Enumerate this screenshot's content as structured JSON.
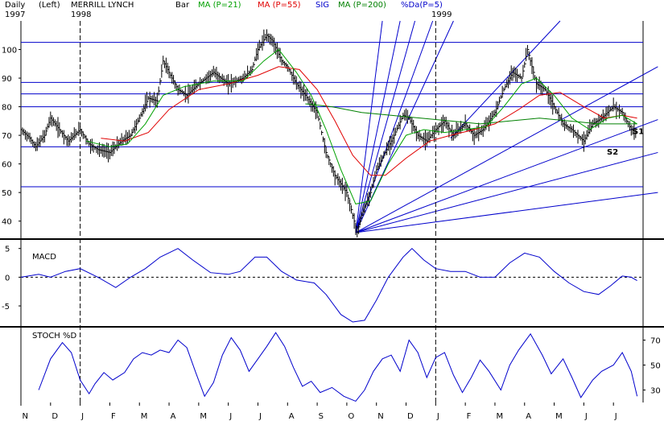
{
  "header": {
    "period": "Daily",
    "scale": "(Left)",
    "symbol": "MERRILL LYNCH",
    "chart_style": "Bar",
    "ma21": "MA (P=21)",
    "ma55": "MA (P=55)",
    "sig": "SIG",
    "ma200": "MA (P=200)",
    "pctd": "%Da(P=5)",
    "year1997": "1997",
    "year1998": "1998",
    "year1999": "1999"
  },
  "colors": {
    "price_bars": "#000000",
    "ma21": "#00a000",
    "ma55": "#e00000",
    "ma200": "#008000",
    "lines": "#0000cc",
    "sig": "#0000cc",
    "pctd": "#0000cc",
    "frame": "#000000"
  },
  "chart_data": [
    {
      "type": "line",
      "title": "",
      "ylim": [
        34,
        110
      ],
      "y_ticks": [
        40,
        50,
        60,
        70,
        80,
        90,
        100
      ],
      "x_ticks": [
        "N",
        "D",
        "J",
        "F",
        "M",
        "A",
        "M",
        "J",
        "J",
        "A",
        "S",
        "O",
        "N",
        "D",
        "J",
        "F",
        "M",
        "A",
        "M",
        "J",
        "J"
      ],
      "horizontal_levels": [
        102.5,
        88.5,
        84.5,
        80,
        66,
        52
      ],
      "annotations": [
        "S1",
        "S2"
      ],
      "price_path": [
        {
          "m": 0.0,
          "v": 72
        },
        {
          "m": 0.3,
          "v": 69
        },
        {
          "m": 0.5,
          "v": 66
        },
        {
          "m": 0.8,
          "v": 70
        },
        {
          "m": 1.0,
          "v": 76
        },
        {
          "m": 1.3,
          "v": 72
        },
        {
          "m": 1.6,
          "v": 68
        },
        {
          "m": 2.0,
          "v": 72
        },
        {
          "m": 2.3,
          "v": 67
        },
        {
          "m": 2.6,
          "v": 65
        },
        {
          "m": 3.0,
          "v": 64
        },
        {
          "m": 3.4,
          "v": 68
        },
        {
          "m": 3.7,
          "v": 70
        },
        {
          "m": 4.0,
          "v": 76
        },
        {
          "m": 4.3,
          "v": 83
        },
        {
          "m": 4.6,
          "v": 82
        },
        {
          "m": 4.8,
          "v": 96
        },
        {
          "m": 5.0,
          "v": 92
        },
        {
          "m": 5.3,
          "v": 86
        },
        {
          "m": 5.6,
          "v": 84
        },
        {
          "m": 6.0,
          "v": 88
        },
        {
          "m": 6.5,
          "v": 92
        },
        {
          "m": 7.0,
          "v": 88
        },
        {
          "m": 7.5,
          "v": 90
        },
        {
          "m": 7.8,
          "v": 93
        },
        {
          "m": 8.0,
          "v": 100
        },
        {
          "m": 8.3,
          "v": 105
        },
        {
          "m": 8.5,
          "v": 103
        },
        {
          "m": 8.8,
          "v": 96
        },
        {
          "m": 9.0,
          "v": 94
        },
        {
          "m": 9.3,
          "v": 88
        },
        {
          "m": 9.6,
          "v": 84
        },
        {
          "m": 10.0,
          "v": 78
        },
        {
          "m": 10.3,
          "v": 64
        },
        {
          "m": 10.6,
          "v": 56
        },
        {
          "m": 11.0,
          "v": 50
        },
        {
          "m": 11.2,
          "v": 42
        },
        {
          "m": 11.35,
          "v": 36
        },
        {
          "m": 11.5,
          "v": 42
        },
        {
          "m": 11.8,
          "v": 50
        },
        {
          "m": 12.0,
          "v": 58
        },
        {
          "m": 12.3,
          "v": 64
        },
        {
          "m": 12.6,
          "v": 70
        },
        {
          "m": 12.9,
          "v": 77
        },
        {
          "m": 13.1,
          "v": 76
        },
        {
          "m": 13.4,
          "v": 70
        },
        {
          "m": 13.7,
          "v": 68
        },
        {
          "m": 14.0,
          "v": 72
        },
        {
          "m": 14.3,
          "v": 75
        },
        {
          "m": 14.6,
          "v": 70
        },
        {
          "m": 15.0,
          "v": 74
        },
        {
          "m": 15.3,
          "v": 70
        },
        {
          "m": 15.6,
          "v": 72
        },
        {
          "m": 16.0,
          "v": 78
        },
        {
          "m": 16.3,
          "v": 86
        },
        {
          "m": 16.6,
          "v": 92
        },
        {
          "m": 16.9,
          "v": 90
        },
        {
          "m": 17.1,
          "v": 100
        },
        {
          "m": 17.4,
          "v": 88
        },
        {
          "m": 17.7,
          "v": 86
        },
        {
          "m": 18.0,
          "v": 80
        },
        {
          "m": 18.3,
          "v": 74
        },
        {
          "m": 18.6,
          "v": 72
        },
        {
          "m": 19.0,
          "v": 68
        },
        {
          "m": 19.3,
          "v": 74
        },
        {
          "m": 19.6,
          "v": 76
        },
        {
          "m": 20.0,
          "v": 80
        },
        {
          "m": 20.3,
          "v": 78
        },
        {
          "m": 20.6,
          "v": 72
        },
        {
          "m": 20.8,
          "v": 71
        }
      ],
      "ma_paths": {
        "ma21": [
          {
            "m": 2.2,
            "v": 68
          },
          {
            "m": 3.0,
            "v": 66
          },
          {
            "m": 3.6,
            "v": 67
          },
          {
            "m": 4.2,
            "v": 74
          },
          {
            "m": 4.8,
            "v": 84
          },
          {
            "m": 5.5,
            "v": 87
          },
          {
            "m": 6.5,
            "v": 89
          },
          {
            "m": 7.5,
            "v": 89
          },
          {
            "m": 8.2,
            "v": 96
          },
          {
            "m": 8.7,
            "v": 100
          },
          {
            "m": 9.3,
            "v": 92
          },
          {
            "m": 9.8,
            "v": 84
          },
          {
            "m": 10.3,
            "v": 72
          },
          {
            "m": 10.8,
            "v": 58
          },
          {
            "m": 11.3,
            "v": 46
          },
          {
            "m": 11.8,
            "v": 47
          },
          {
            "m": 12.4,
            "v": 60
          },
          {
            "m": 13.0,
            "v": 70
          },
          {
            "m": 13.6,
            "v": 72
          },
          {
            "m": 14.3,
            "v": 71
          },
          {
            "m": 15.0,
            "v": 72
          },
          {
            "m": 15.7,
            "v": 73
          },
          {
            "m": 16.3,
            "v": 80
          },
          {
            "m": 16.9,
            "v": 88
          },
          {
            "m": 17.4,
            "v": 90
          },
          {
            "m": 18.0,
            "v": 84
          },
          {
            "m": 18.6,
            "v": 76
          },
          {
            "m": 19.2,
            "v": 72
          },
          {
            "m": 19.8,
            "v": 76
          },
          {
            "m": 20.3,
            "v": 77
          },
          {
            "m": 20.8,
            "v": 74
          }
        ],
        "ma55": [
          {
            "m": 2.7,
            "v": 69
          },
          {
            "m": 3.5,
            "v": 68
          },
          {
            "m": 4.3,
            "v": 71
          },
          {
            "m": 5.0,
            "v": 79
          },
          {
            "m": 6.0,
            "v": 86
          },
          {
            "m": 7.0,
            "v": 88
          },
          {
            "m": 8.0,
            "v": 91
          },
          {
            "m": 8.7,
            "v": 94
          },
          {
            "m": 9.4,
            "v": 93
          },
          {
            "m": 10.0,
            "v": 86
          },
          {
            "m": 10.6,
            "v": 75
          },
          {
            "m": 11.2,
            "v": 63
          },
          {
            "m": 11.8,
            "v": 56
          },
          {
            "m": 12.3,
            "v": 56
          },
          {
            "m": 13.0,
            "v": 62
          },
          {
            "m": 13.8,
            "v": 68
          },
          {
            "m": 14.5,
            "v": 70
          },
          {
            "m": 15.3,
            "v": 72
          },
          {
            "m": 16.0,
            "v": 74
          },
          {
            "m": 16.8,
            "v": 79
          },
          {
            "m": 17.5,
            "v": 84
          },
          {
            "m": 18.2,
            "v": 85
          },
          {
            "m": 19.0,
            "v": 80
          },
          {
            "m": 19.7,
            "v": 76
          },
          {
            "m": 20.3,
            "v": 77
          },
          {
            "m": 20.8,
            "v": 76
          }
        ],
        "ma200": [
          {
            "m": 9.6,
            "v": 81
          },
          {
            "m": 10.5,
            "v": 80
          },
          {
            "m": 11.5,
            "v": 78
          },
          {
            "m": 12.5,
            "v": 77
          },
          {
            "m": 13.5,
            "v": 76
          },
          {
            "m": 14.5,
            "v": 75
          },
          {
            "m": 15.5,
            "v": 74
          },
          {
            "m": 16.5,
            "v": 75
          },
          {
            "m": 17.5,
            "v": 76
          },
          {
            "m": 18.5,
            "v": 75
          },
          {
            "m": 19.5,
            "v": 74
          },
          {
            "m": 20.3,
            "v": 74
          },
          {
            "m": 20.8,
            "v": 74
          }
        ]
      },
      "fan_lines": {
        "origin": {
          "m": 11.3,
          "v": 36
        },
        "targets": [
          {
            "m": 12.2,
            "v": 110
          },
          {
            "m": 12.8,
            "v": 110
          },
          {
            "m": 13.3,
            "v": 110
          },
          {
            "m": 13.9,
            "v": 110
          },
          {
            "m": 14.6,
            "v": 110
          },
          {
            "m": 21.5,
            "v": 94
          },
          {
            "m": 21.5,
            "v": 75.5
          },
          {
            "m": 21.5,
            "v": 64
          },
          {
            "m": 21.5,
            "v": 50
          }
        ]
      },
      "trendlines": [
        {
          "from": {
            "m": 14.5,
            "v": 69
          },
          "to": {
            "m": 18.2,
            "v": 110
          }
        }
      ]
    },
    {
      "type": "line",
      "title": "MACD",
      "ylim": [
        -8.5,
        6.5
      ],
      "y_ticks": [
        5,
        0,
        -5
      ],
      "zero_line": true,
      "macd_path": [
        {
          "m": 0.0,
          "v": 0.0
        },
        {
          "m": 0.6,
          "v": 0.5
        },
        {
          "m": 1.0,
          "v": 0.0
        },
        {
          "m": 1.5,
          "v": 1.0
        },
        {
          "m": 2.0,
          "v": 1.5
        },
        {
          "m": 2.6,
          "v": 0.0
        },
        {
          "m": 3.2,
          "v": -1.8
        },
        {
          "m": 3.7,
          "v": 0.0
        },
        {
          "m": 4.2,
          "v": 1.5
        },
        {
          "m": 4.7,
          "v": 3.5
        },
        {
          "m": 5.3,
          "v": 5.0
        },
        {
          "m": 5.8,
          "v": 3.0
        },
        {
          "m": 6.4,
          "v": 0.8
        },
        {
          "m": 7.0,
          "v": 0.5
        },
        {
          "m": 7.4,
          "v": 1.0
        },
        {
          "m": 7.9,
          "v": 3.5
        },
        {
          "m": 8.3,
          "v": 3.5
        },
        {
          "m": 8.8,
          "v": 1.0
        },
        {
          "m": 9.3,
          "v": -0.5
        },
        {
          "m": 9.9,
          "v": -1.0
        },
        {
          "m": 10.3,
          "v": -3.0
        },
        {
          "m": 10.8,
          "v": -6.5
        },
        {
          "m": 11.2,
          "v": -7.8
        },
        {
          "m": 11.6,
          "v": -7.5
        },
        {
          "m": 12.0,
          "v": -4.0
        },
        {
          "m": 12.4,
          "v": 0.0
        },
        {
          "m": 12.9,
          "v": 3.5
        },
        {
          "m": 13.2,
          "v": 5.0
        },
        {
          "m": 13.6,
          "v": 3.0
        },
        {
          "m": 14.0,
          "v": 1.5
        },
        {
          "m": 14.5,
          "v": 1.0
        },
        {
          "m": 15.0,
          "v": 1.0
        },
        {
          "m": 15.5,
          "v": 0.0
        },
        {
          "m": 16.0,
          "v": 0.0
        },
        {
          "m": 16.5,
          "v": 2.5
        },
        {
          "m": 17.0,
          "v": 4.2
        },
        {
          "m": 17.5,
          "v": 3.5
        },
        {
          "m": 18.0,
          "v": 1.0
        },
        {
          "m": 18.5,
          "v": -1.0
        },
        {
          "m": 19.0,
          "v": -2.5
        },
        {
          "m": 19.5,
          "v": -3.0
        },
        {
          "m": 19.9,
          "v": -1.5
        },
        {
          "m": 20.3,
          "v": 0.2
        },
        {
          "m": 20.6,
          "v": 0.0
        },
        {
          "m": 20.8,
          "v": -0.6
        }
      ]
    },
    {
      "type": "line",
      "title": "STOCH %D",
      "ylim": [
        20,
        80
      ],
      "y_ticks": [
        70,
        50,
        30
      ],
      "stoch_path": [
        {
          "m": 0.6,
          "v": 30
        },
        {
          "m": 1.0,
          "v": 55
        },
        {
          "m": 1.4,
          "v": 68
        },
        {
          "m": 1.7,
          "v": 60
        },
        {
          "m": 2.0,
          "v": 38
        },
        {
          "m": 2.3,
          "v": 27
        },
        {
          "m": 2.5,
          "v": 35
        },
        {
          "m": 2.8,
          "v": 44
        },
        {
          "m": 3.1,
          "v": 38
        },
        {
          "m": 3.5,
          "v": 44
        },
        {
          "m": 3.8,
          "v": 55
        },
        {
          "m": 4.1,
          "v": 60
        },
        {
          "m": 4.4,
          "v": 58
        },
        {
          "m": 4.7,
          "v": 62
        },
        {
          "m": 5.0,
          "v": 60
        },
        {
          "m": 5.3,
          "v": 70
        },
        {
          "m": 5.6,
          "v": 64
        },
        {
          "m": 5.9,
          "v": 44
        },
        {
          "m": 6.2,
          "v": 25
        },
        {
          "m": 6.5,
          "v": 36
        },
        {
          "m": 6.8,
          "v": 58
        },
        {
          "m": 7.1,
          "v": 72
        },
        {
          "m": 7.4,
          "v": 62
        },
        {
          "m": 7.7,
          "v": 45
        },
        {
          "m": 8.0,
          "v": 55
        },
        {
          "m": 8.3,
          "v": 65
        },
        {
          "m": 8.6,
          "v": 76
        },
        {
          "m": 8.9,
          "v": 65
        },
        {
          "m": 9.2,
          "v": 48
        },
        {
          "m": 9.5,
          "v": 33
        },
        {
          "m": 9.8,
          "v": 37
        },
        {
          "m": 10.1,
          "v": 28
        },
        {
          "m": 10.5,
          "v": 32
        },
        {
          "m": 10.9,
          "v": 25
        },
        {
          "m": 11.3,
          "v": 21
        },
        {
          "m": 11.6,
          "v": 30
        },
        {
          "m": 11.9,
          "v": 45
        },
        {
          "m": 12.2,
          "v": 55
        },
        {
          "m": 12.5,
          "v": 58
        },
        {
          "m": 12.8,
          "v": 45
        },
        {
          "m": 13.1,
          "v": 70
        },
        {
          "m": 13.4,
          "v": 60
        },
        {
          "m": 13.7,
          "v": 40
        },
        {
          "m": 14.0,
          "v": 56
        },
        {
          "m": 14.3,
          "v": 60
        },
        {
          "m": 14.6,
          "v": 42
        },
        {
          "m": 14.9,
          "v": 28
        },
        {
          "m": 15.2,
          "v": 40
        },
        {
          "m": 15.5,
          "v": 54
        },
        {
          "m": 15.8,
          "v": 45
        },
        {
          "m": 16.2,
          "v": 30
        },
        {
          "m": 16.5,
          "v": 50
        },
        {
          "m": 16.8,
          "v": 62
        },
        {
          "m": 17.2,
          "v": 75
        },
        {
          "m": 17.6,
          "v": 58
        },
        {
          "m": 17.9,
          "v": 43
        },
        {
          "m": 18.3,
          "v": 55
        },
        {
          "m": 18.6,
          "v": 40
        },
        {
          "m": 18.9,
          "v": 24
        },
        {
          "m": 19.3,
          "v": 38
        },
        {
          "m": 19.6,
          "v": 45
        },
        {
          "m": 20.0,
          "v": 50
        },
        {
          "m": 20.3,
          "v": 60
        },
        {
          "m": 20.6,
          "v": 45
        },
        {
          "m": 20.8,
          "v": 25
        }
      ]
    }
  ]
}
